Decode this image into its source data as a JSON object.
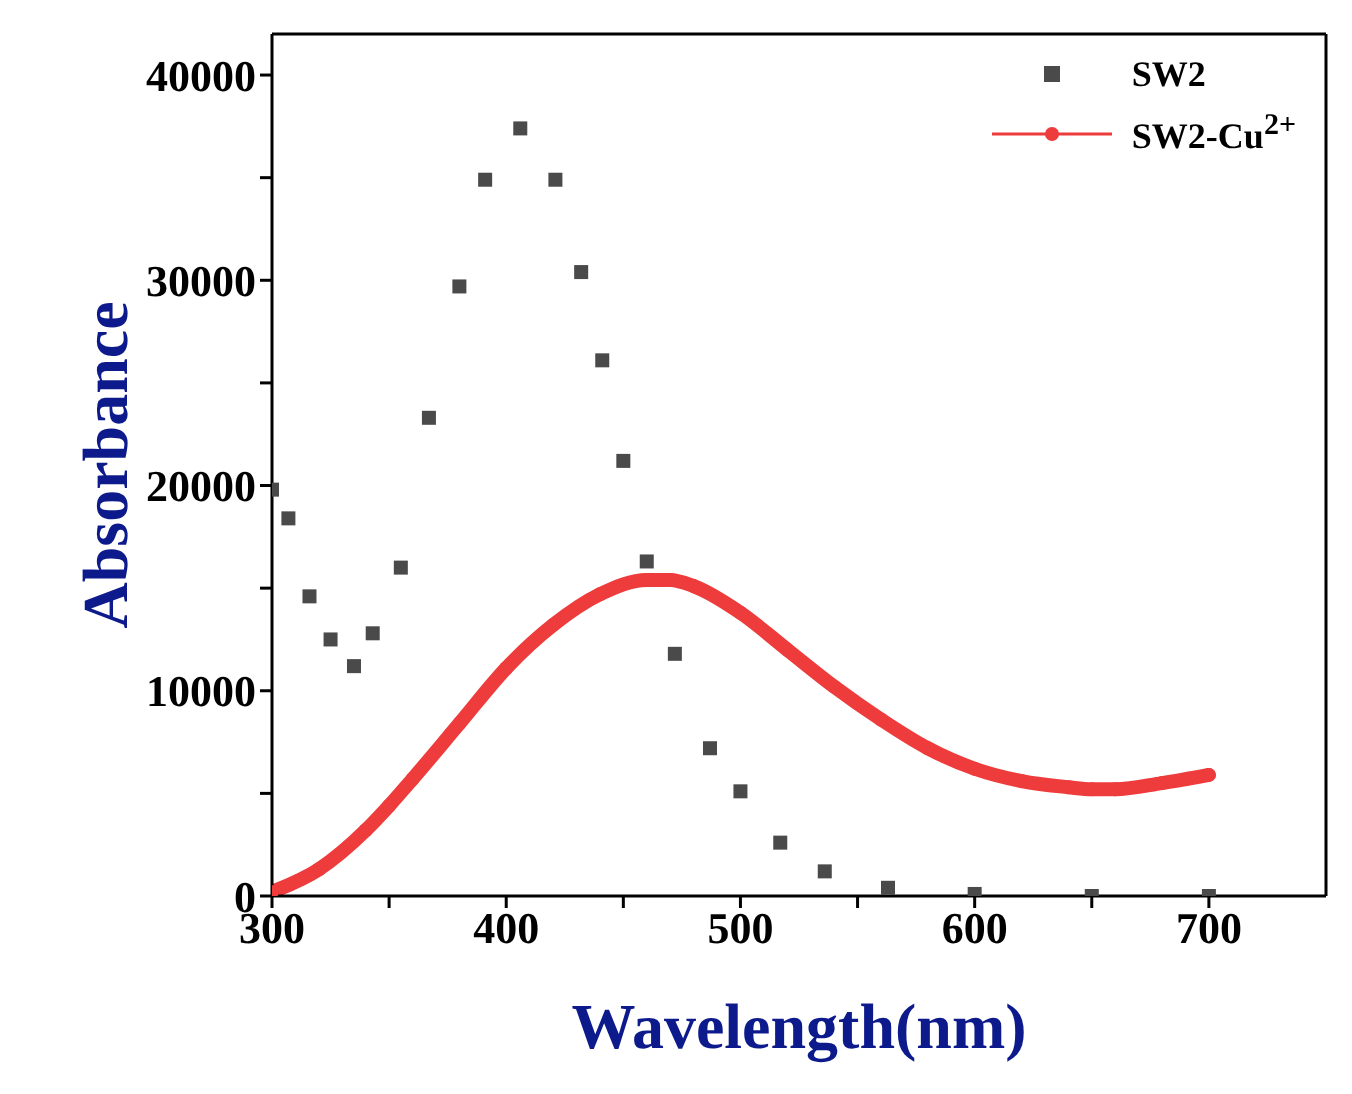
{
  "chart_data": {
    "type": "line",
    "xlabel": "Wavelength(nm)",
    "ylabel": "Absorbance",
    "xlim": [
      300,
      750
    ],
    "xticks": [
      300,
      {
        "value": 350,
        "label": null
      },
      400,
      {
        "value": 450,
        "label": null
      },
      500,
      {
        "value": 550,
        "label": null
      },
      600,
      {
        "value": 650,
        "label": null
      },
      700
    ],
    "ylim": [
      0,
      42000
    ],
    "yticks": [
      0,
      {
        "value": 5000,
        "label": null
      },
      10000,
      {
        "value": 15000,
        "label": null
      },
      20000,
      {
        "value": 25000,
        "label": null
      },
      30000,
      {
        "value": 35000,
        "label": null
      },
      40000
    ],
    "grid": false,
    "legend": "top right",
    "series": [
      {
        "name": "SW2",
        "type": "scatter",
        "marker": "square",
        "color": "#4a4a4a",
        "x": [
          300,
          307,
          316,
          325,
          335,
          343,
          355,
          367,
          380,
          391,
          406,
          421,
          432,
          441,
          450,
          460,
          472,
          487,
          500,
          517,
          536,
          563,
          600,
          650,
          700
        ],
        "values": [
          19800,
          18400,
          14600,
          12500,
          11200,
          12800,
          16000,
          23300,
          29700,
          34900,
          37400,
          34900,
          30400,
          26100,
          21200,
          16300,
          11800,
          7200,
          5100,
          2600,
          1200,
          400,
          100,
          0,
          0
        ]
      },
      {
        "name": "SW2-Cu$^{2+}$",
        "type": "line",
        "marker": "circle",
        "line_style": "solid",
        "color": "#ee3b3b",
        "x": [
          300,
          320,
          340,
          350,
          360,
          380,
          400,
          420,
          440,
          460,
          470,
          480,
          500,
          520,
          540,
          560,
          580,
          600,
          620,
          640,
          650,
          660,
          680,
          700
        ],
        "values": [
          200,
          1300,
          3200,
          4400,
          5700,
          8400,
          11100,
          13200,
          14700,
          15400,
          15400,
          15100,
          13800,
          12000,
          10200,
          8600,
          7200,
          6200,
          5600,
          5300,
          5200,
          5200,
          5500,
          5900
        ]
      }
    ]
  }
}
